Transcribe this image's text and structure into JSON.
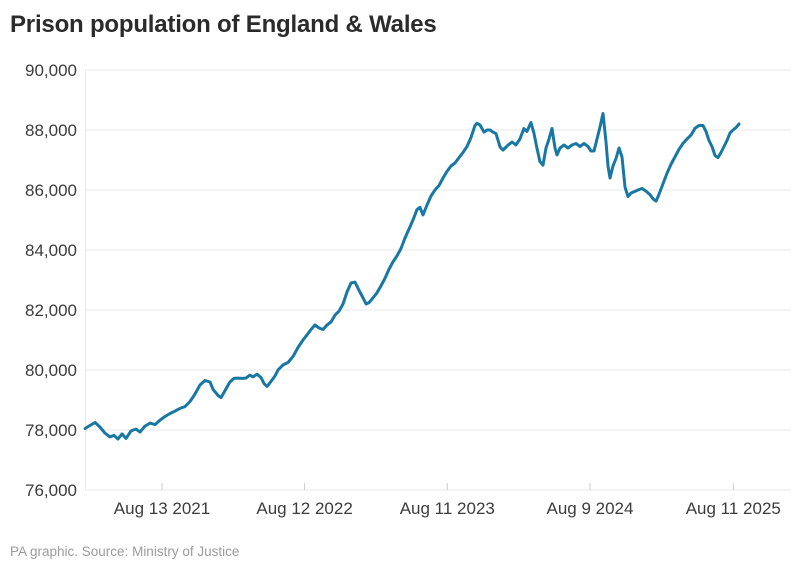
{
  "header": {
    "title": "Prison population of England & Wales"
  },
  "footer": {
    "source": "PA graphic. Source: Ministry of Justice"
  },
  "colors": {
    "line": "#1878a3",
    "grid": "#e8e8e8",
    "axis_text": "#3c3c3c",
    "tick_mark": "#cccccc",
    "title_text": "#2b2b2b",
    "source_text": "#9b9b9b",
    "background": "#ffffff"
  },
  "chart_data": {
    "type": "line",
    "title": "Prison population of England & Wales",
    "xlabel": "",
    "ylabel": "",
    "legend": "none",
    "grid": "horizontal",
    "x_axis": {
      "type": "time-decimal-years",
      "domain": [
        2021.077,
        2025.66
      ],
      "ticks": [
        {
          "t": 2021.615,
          "label": "Aug 13 2021"
        },
        {
          "t": 2022.612,
          "label": "Aug 12 2022"
        },
        {
          "t": 2023.61,
          "label": "Aug 11 2023"
        },
        {
          "t": 2024.608,
          "label": "Aug 9 2024"
        },
        {
          "t": 2025.61,
          "label": "Aug 11 2025"
        }
      ]
    },
    "y_axis": {
      "min": 76000,
      "max": 90000,
      "tick_step": 2000,
      "tick_values": [
        90000,
        88000,
        86000,
        84000,
        82000,
        80000,
        78000,
        76000
      ],
      "tick_labels": [
        "90,000",
        "88,000",
        "86,000",
        "84,000",
        "82,000",
        "80,000",
        "78,000",
        "76,000"
      ]
    },
    "series": [
      {
        "name": "Prison population of England & Wales",
        "points": [
          [
            2021.077,
            78050
          ],
          [
            2021.111,
            78150
          ],
          [
            2021.147,
            78250
          ],
          [
            2021.181,
            78100
          ],
          [
            2021.216,
            77900
          ],
          [
            2021.251,
            77770
          ],
          [
            2021.279,
            77820
          ],
          [
            2021.307,
            77700
          ],
          [
            2021.335,
            77870
          ],
          [
            2021.363,
            77720
          ],
          [
            2021.398,
            77970
          ],
          [
            2021.433,
            78030
          ],
          [
            2021.461,
            77930
          ],
          [
            2021.496,
            78130
          ],
          [
            2021.531,
            78230
          ],
          [
            2021.566,
            78180
          ],
          [
            2021.601,
            78330
          ],
          [
            2021.636,
            78450
          ],
          [
            2021.671,
            78550
          ],
          [
            2021.706,
            78630
          ],
          [
            2021.741,
            78720
          ],
          [
            2021.776,
            78780
          ],
          [
            2021.811,
            78950
          ],
          [
            2021.846,
            79200
          ],
          [
            2021.881,
            79500
          ],
          [
            2021.916,
            79650
          ],
          [
            2021.951,
            79600
          ],
          [
            2021.972,
            79350
          ],
          [
            2022.007,
            79150
          ],
          [
            2022.028,
            79080
          ],
          [
            2022.063,
            79380
          ],
          [
            2022.09,
            79600
          ],
          [
            2022.118,
            79720
          ],
          [
            2022.146,
            79730
          ],
          [
            2022.174,
            79720
          ],
          [
            2022.202,
            79730
          ],
          [
            2022.23,
            79830
          ],
          [
            2022.251,
            79770
          ],
          [
            2022.279,
            79860
          ],
          [
            2022.307,
            79750
          ],
          [
            2022.328,
            79550
          ],
          [
            2022.349,
            79450
          ],
          [
            2022.377,
            79620
          ],
          [
            2022.405,
            79800
          ],
          [
            2022.426,
            80000
          ],
          [
            2022.461,
            80170
          ],
          [
            2022.496,
            80250
          ],
          [
            2022.531,
            80450
          ],
          [
            2022.566,
            80750
          ],
          [
            2022.601,
            81000
          ],
          [
            2022.629,
            81170
          ],
          [
            2022.657,
            81350
          ],
          [
            2022.685,
            81500
          ],
          [
            2022.713,
            81400
          ],
          [
            2022.741,
            81350
          ],
          [
            2022.769,
            81500
          ],
          [
            2022.797,
            81600
          ],
          [
            2022.825,
            81830
          ],
          [
            2022.853,
            81960
          ],
          [
            2022.881,
            82200
          ],
          [
            2022.909,
            82600
          ],
          [
            2022.937,
            82900
          ],
          [
            2022.965,
            82930
          ],
          [
            2022.993,
            82650
          ],
          [
            2023.021,
            82400
          ],
          [
            2023.042,
            82200
          ],
          [
            2023.063,
            82250
          ],
          [
            2023.09,
            82400
          ],
          [
            2023.118,
            82570
          ],
          [
            2023.146,
            82800
          ],
          [
            2023.174,
            83050
          ],
          [
            2023.202,
            83350
          ],
          [
            2023.23,
            83600
          ],
          [
            2023.258,
            83800
          ],
          [
            2023.286,
            84050
          ],
          [
            2023.314,
            84400
          ],
          [
            2023.342,
            84700
          ],
          [
            2023.37,
            85000
          ],
          [
            2023.398,
            85350
          ],
          [
            2023.419,
            85420
          ],
          [
            2023.44,
            85170
          ],
          [
            2023.468,
            85500
          ],
          [
            2023.496,
            85800
          ],
          [
            2023.524,
            86000
          ],
          [
            2023.552,
            86150
          ],
          [
            2023.58,
            86400
          ],
          [
            2023.608,
            86620
          ],
          [
            2023.636,
            86800
          ],
          [
            2023.664,
            86900
          ],
          [
            2023.692,
            87080
          ],
          [
            2023.72,
            87250
          ],
          [
            2023.748,
            87450
          ],
          [
            2023.776,
            87750
          ],
          [
            2023.804,
            88150
          ],
          [
            2023.818,
            88225
          ],
          [
            2023.839,
            88170
          ],
          [
            2023.867,
            87930
          ],
          [
            2023.888,
            88000
          ],
          [
            2023.909,
            88000
          ],
          [
            2023.93,
            87930
          ],
          [
            2023.951,
            87880
          ],
          [
            2023.979,
            87430
          ],
          [
            2024.0,
            87330
          ],
          [
            2024.035,
            87500
          ],
          [
            2024.063,
            87600
          ],
          [
            2024.09,
            87500
          ],
          [
            2024.118,
            87700
          ],
          [
            2024.146,
            88050
          ],
          [
            2024.167,
            87950
          ],
          [
            2024.195,
            88250
          ],
          [
            2024.216,
            87900
          ],
          [
            2024.237,
            87400
          ],
          [
            2024.258,
            86950
          ],
          [
            2024.279,
            86830
          ],
          [
            2024.3,
            87400
          ],
          [
            2024.321,
            87700
          ],
          [
            2024.342,
            88050
          ],
          [
            2024.363,
            87400
          ],
          [
            2024.377,
            87170
          ],
          [
            2024.398,
            87400
          ],
          [
            2024.426,
            87500
          ],
          [
            2024.454,
            87400
          ],
          [
            2024.482,
            87500
          ],
          [
            2024.51,
            87550
          ],
          [
            2024.538,
            87450
          ],
          [
            2024.566,
            87550
          ],
          [
            2024.594,
            87450
          ],
          [
            2024.615,
            87300
          ],
          [
            2024.636,
            87300
          ],
          [
            2024.657,
            87700
          ],
          [
            2024.678,
            88100
          ],
          [
            2024.699,
            88550
          ],
          [
            2024.72,
            87600
          ],
          [
            2024.734,
            86800
          ],
          [
            2024.748,
            86400
          ],
          [
            2024.769,
            86800
          ],
          [
            2024.79,
            87050
          ],
          [
            2024.811,
            87400
          ],
          [
            2024.832,
            87100
          ],
          [
            2024.853,
            86100
          ],
          [
            2024.874,
            85780
          ],
          [
            2024.895,
            85900
          ],
          [
            2024.916,
            85940
          ],
          [
            2024.944,
            86000
          ],
          [
            2024.972,
            86050
          ],
          [
            2025.0,
            85960
          ],
          [
            2025.028,
            85840
          ],
          [
            2025.049,
            85700
          ],
          [
            2025.07,
            85630
          ],
          [
            2025.09,
            85850
          ],
          [
            2025.118,
            86200
          ],
          [
            2025.146,
            86550
          ],
          [
            2025.174,
            86850
          ],
          [
            2025.202,
            87100
          ],
          [
            2025.23,
            87350
          ],
          [
            2025.258,
            87550
          ],
          [
            2025.286,
            87700
          ],
          [
            2025.314,
            87830
          ],
          [
            2025.342,
            88060
          ],
          [
            2025.37,
            88150
          ],
          [
            2025.398,
            88150
          ],
          [
            2025.419,
            87950
          ],
          [
            2025.44,
            87650
          ],
          [
            2025.461,
            87450
          ],
          [
            2025.482,
            87150
          ],
          [
            2025.503,
            87080
          ],
          [
            2025.524,
            87250
          ],
          [
            2025.545,
            87450
          ],
          [
            2025.566,
            87650
          ],
          [
            2025.587,
            87900
          ],
          [
            2025.608,
            88000
          ],
          [
            2025.629,
            88080
          ],
          [
            2025.65,
            88200
          ]
        ]
      }
    ]
  }
}
